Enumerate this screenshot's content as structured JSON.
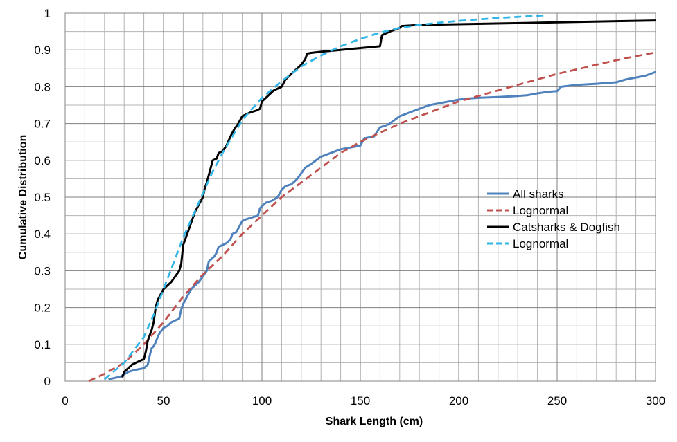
{
  "chart_data": {
    "type": "line",
    "title": "",
    "xlabel": "Shark Length (cm)",
    "ylabel": "Cumulative Distribution",
    "xlim": [
      0,
      300
    ],
    "ylim": [
      0,
      1
    ],
    "x_ticks": [
      0,
      50,
      100,
      150,
      200,
      250,
      300
    ],
    "x_tick_labels": [
      "0",
      "50",
      "100",
      "150",
      "200",
      "250",
      "300"
    ],
    "y_ticks": [
      0,
      0.1,
      0.2,
      0.3,
      0.4,
      0.5,
      0.6,
      0.7,
      0.8,
      0.9,
      1
    ],
    "y_tick_labels": [
      "0",
      "0.1",
      "0.2",
      "0.3",
      "0.4",
      "0.5",
      "0.6",
      "0.7",
      "0.8",
      "0.9",
      "1"
    ],
    "grid": true,
    "legend": "center-right",
    "series": [
      {
        "name": "All sharks",
        "style": "solid",
        "color": "#4F81BD",
        "x": [
          22,
          28,
          32,
          35,
          40,
          42,
          43,
          44,
          45,
          46,
          47,
          48,
          50,
          52,
          54,
          56,
          58,
          59,
          60,
          62,
          64,
          66,
          68,
          70,
          72,
          73,
          74,
          76,
          77,
          78,
          80,
          82,
          84,
          85,
          87,
          88,
          90,
          92,
          95,
          98,
          99,
          100,
          102,
          105,
          108,
          110,
          112,
          115,
          117,
          118,
          120,
          122,
          125,
          130,
          135,
          140,
          145,
          150,
          152,
          157,
          160,
          163,
          165,
          170,
          175,
          180,
          185,
          190,
          195,
          200,
          205,
          210,
          220,
          230,
          235,
          240,
          245,
          250,
          252,
          260,
          270,
          280,
          285,
          290,
          295,
          300
        ],
        "values": [
          0.005,
          0.012,
          0.025,
          0.03,
          0.035,
          0.045,
          0.07,
          0.09,
          0.095,
          0.105,
          0.12,
          0.13,
          0.145,
          0.15,
          0.16,
          0.165,
          0.17,
          0.195,
          0.21,
          0.23,
          0.25,
          0.26,
          0.27,
          0.285,
          0.3,
          0.325,
          0.33,
          0.34,
          0.35,
          0.365,
          0.37,
          0.375,
          0.385,
          0.4,
          0.405,
          0.415,
          0.435,
          0.44,
          0.445,
          0.45,
          0.47,
          0.475,
          0.485,
          0.49,
          0.5,
          0.52,
          0.53,
          0.535,
          0.545,
          0.55,
          0.565,
          0.58,
          0.59,
          0.61,
          0.62,
          0.63,
          0.635,
          0.64,
          0.66,
          0.665,
          0.69,
          0.695,
          0.7,
          0.72,
          0.73,
          0.74,
          0.75,
          0.755,
          0.76,
          0.765,
          0.768,
          0.77,
          0.772,
          0.775,
          0.777,
          0.782,
          0.786,
          0.788,
          0.8,
          0.805,
          0.808,
          0.812,
          0.82,
          0.825,
          0.83,
          0.84
        ]
      },
      {
        "name": "Lognormal",
        "style": "dashed",
        "color": "#C0504D",
        "x": [
          12,
          20,
          30,
          40,
          50,
          60,
          70,
          80,
          90,
          100,
          110,
          120,
          130,
          140,
          150,
          160,
          170,
          180,
          190,
          200,
          210,
          220,
          230,
          240,
          250,
          260,
          270,
          280,
          290,
          300
        ],
        "values": [
          0.0,
          0.02,
          0.05,
          0.1,
          0.16,
          0.23,
          0.29,
          0.34,
          0.4,
          0.45,
          0.5,
          0.54,
          0.58,
          0.62,
          0.65,
          0.675,
          0.7,
          0.72,
          0.74,
          0.76,
          0.775,
          0.79,
          0.805,
          0.82,
          0.835,
          0.847,
          0.86,
          0.872,
          0.883,
          0.893
        ]
      },
      {
        "name": "Catsharks & Dogfish",
        "style": "solid",
        "color": "#000000",
        "x": [
          29,
          30,
          32,
          34,
          36,
          40,
          41,
          42,
          43,
          44,
          45,
          46,
          47,
          48,
          50,
          52,
          54,
          56,
          58,
          59,
          60,
          62,
          64,
          66,
          68,
          70,
          71,
          72,
          73,
          74,
          75,
          77,
          78,
          80,
          82,
          84,
          86,
          88,
          90,
          92,
          94,
          97,
          99,
          100,
          102,
          104,
          106,
          108,
          110,
          112,
          115,
          118,
          120,
          122,
          123,
          125,
          130,
          140,
          150,
          160,
          161,
          165,
          170,
          171,
          180,
          200,
          250,
          300
        ],
        "values": [
          0.01,
          0.025,
          0.035,
          0.045,
          0.05,
          0.06,
          0.08,
          0.11,
          0.125,
          0.14,
          0.16,
          0.2,
          0.22,
          0.23,
          0.25,
          0.26,
          0.27,
          0.285,
          0.3,
          0.32,
          0.37,
          0.4,
          0.43,
          0.46,
          0.48,
          0.5,
          0.525,
          0.54,
          0.56,
          0.58,
          0.6,
          0.605,
          0.62,
          0.625,
          0.64,
          0.665,
          0.685,
          0.7,
          0.72,
          0.725,
          0.73,
          0.735,
          0.74,
          0.76,
          0.77,
          0.78,
          0.79,
          0.795,
          0.8,
          0.82,
          0.835,
          0.85,
          0.86,
          0.875,
          0.89,
          0.892,
          0.895,
          0.9,
          0.905,
          0.91,
          0.94,
          0.95,
          0.96,
          0.965,
          0.968,
          0.97,
          0.975,
          0.98
        ]
      },
      {
        "name": "Lognormal",
        "style": "dashed",
        "color": "#31B4E6",
        "x": [
          20,
          30,
          40,
          45,
          50,
          55,
          60,
          65,
          70,
          75,
          80,
          90,
          100,
          110,
          120,
          130,
          140,
          150,
          160,
          170,
          180,
          190,
          200,
          210,
          220,
          230,
          240,
          243
        ],
        "values": [
          0.005,
          0.05,
          0.12,
          0.18,
          0.25,
          0.32,
          0.39,
          0.45,
          0.51,
          0.57,
          0.62,
          0.71,
          0.77,
          0.815,
          0.855,
          0.885,
          0.91,
          0.93,
          0.947,
          0.96,
          0.968,
          0.974,
          0.979,
          0.983,
          0.987,
          0.99,
          0.993,
          0.994
        ]
      }
    ]
  }
}
